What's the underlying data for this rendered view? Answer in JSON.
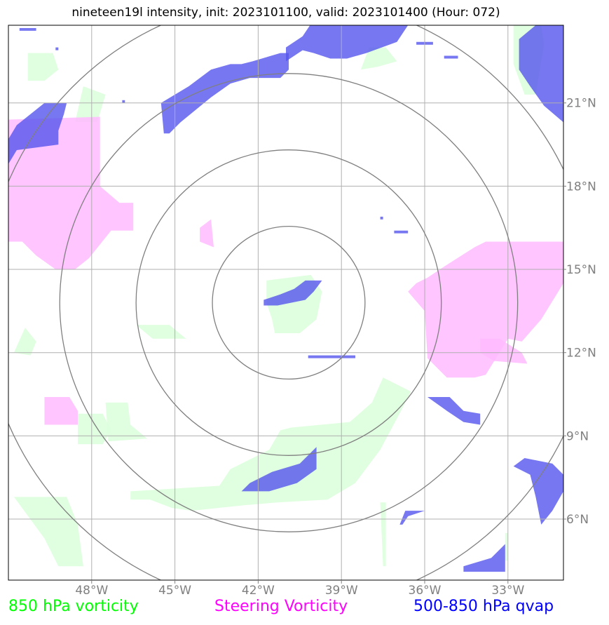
{
  "title": "nineteen19l intensity, init: 2023101100, valid: 2023101400 (Hour: 072)",
  "legend": [
    {
      "label": "850 hPa vorticity",
      "color": "#00ff00"
    },
    {
      "label": "Steering Vorticity",
      "color": "#ff00ff"
    },
    {
      "label": "500-850 hPa qvap",
      "color": "#0000ff"
    }
  ],
  "map": {
    "lon_range": [
      -51,
      -31
    ],
    "lat_range": [
      3.8,
      23.8
    ],
    "lon_ticks": [
      {
        "value": -48,
        "label": "48°W"
      },
      {
        "value": -45,
        "label": "45°W"
      },
      {
        "value": -42,
        "label": "42°W"
      },
      {
        "value": -39,
        "label": "39°W"
      },
      {
        "value": -36,
        "label": "36°W"
      },
      {
        "value": -33,
        "label": "33°W"
      }
    ],
    "lat_ticks": [
      {
        "value": 21,
        "label": "21°N"
      },
      {
        "value": 18,
        "label": "18°N"
      },
      {
        "value": 15,
        "label": "15°N"
      },
      {
        "value": 12,
        "label": "12°N"
      },
      {
        "value": 9,
        "label": "9°N"
      },
      {
        "value": 6,
        "label": "6°N"
      }
    ],
    "storm_center": {
      "lon": -40.9,
      "lat": 13.8
    },
    "range_rings_deg": [
      2.75,
      5.5,
      8.25,
      11.0
    ],
    "grid": true,
    "colors": {
      "vort850": "#ddffdd",
      "steering": "#ffbbff",
      "qvap": "#5555ee",
      "grid": "#b0b0b0",
      "rings": "#808080"
    }
  },
  "shapes": {
    "vort850": [
      [
        [
          -50.3,
          22.8
        ],
        [
          -49.4,
          22.8
        ],
        [
          -49.2,
          22.2
        ],
        [
          -49.7,
          21.8
        ],
        [
          -50.3,
          21.8
        ]
      ],
      [
        [
          -48.3,
          21.6
        ],
        [
          -47.5,
          21.3
        ],
        [
          -47.8,
          20.3
        ],
        [
          -48.6,
          20.3
        ]
      ],
      [
        [
          -50.4,
          12.9
        ],
        [
          -50.0,
          12.4
        ],
        [
          -50.2,
          11.9
        ],
        [
          -50.8,
          12.0
        ]
      ],
      [
        [
          -46.4,
          13.0
        ],
        [
          -45.2,
          13.0
        ],
        [
          -44.6,
          12.5
        ],
        [
          -45.8,
          12.5
        ]
      ],
      [
        [
          -48.5,
          9.8
        ],
        [
          -47.6,
          9.8
        ],
        [
          -47.3,
          9.2
        ],
        [
          -47.6,
          8.7
        ],
        [
          -48.5,
          8.7
        ]
      ],
      [
        [
          -47.5,
          10.2
        ],
        [
          -46.7,
          10.2
        ],
        [
          -46.6,
          9.4
        ],
        [
          -46.0,
          8.9
        ],
        [
          -47.4,
          8.8
        ]
      ],
      [
        [
          -50.8,
          6.8
        ],
        [
          -48.9,
          6.8
        ],
        [
          -48.5,
          5.8
        ],
        [
          -48.3,
          4.3
        ],
        [
          -49.2,
          4.3
        ],
        [
          -49.7,
          5.3
        ]
      ],
      [
        [
          -46.6,
          7.0
        ],
        [
          -43.4,
          7.2
        ],
        [
          -43.0,
          7.8
        ],
        [
          -41.6,
          8.5
        ],
        [
          -41.2,
          9.2
        ],
        [
          -40.8,
          9.3
        ],
        [
          -38.7,
          9.5
        ],
        [
          -37.9,
          10.2
        ],
        [
          -37.5,
          11.1
        ],
        [
          -36.5,
          10.6
        ],
        [
          -36.8,
          10.0
        ],
        [
          -37.6,
          8.5
        ],
        [
          -38.5,
          7.3
        ],
        [
          -39.5,
          6.7
        ],
        [
          -41.3,
          6.6
        ],
        [
          -42.5,
          6.5
        ],
        [
          -44.4,
          6.3
        ],
        [
          -45.1,
          6.4
        ],
        [
          -45.9,
          6.7
        ],
        [
          -46.6,
          6.7
        ]
      ],
      [
        [
          -41.7,
          14.6
        ],
        [
          -40.1,
          14.8
        ],
        [
          -39.7,
          14.2
        ],
        [
          -39.9,
          13.2
        ],
        [
          -40.5,
          12.7
        ],
        [
          -41.4,
          12.7
        ],
        [
          -41.5,
          13.2
        ],
        [
          -41.7,
          13.8
        ]
      ],
      [
        [
          -38.0,
          23.0
        ],
        [
          -37.4,
          23.0
        ],
        [
          -37.0,
          22.5
        ],
        [
          -37.7,
          22.3
        ],
        [
          -38.3,
          22.2
        ]
      ],
      [
        [
          -32.8,
          23.8
        ],
        [
          -31.8,
          23.8
        ],
        [
          -31.7,
          23.1
        ],
        [
          -32.0,
          21.3
        ],
        [
          -32.4,
          21.3
        ],
        [
          -32.8,
          22.4
        ]
      ],
      [
        [
          -37.6,
          6.6
        ],
        [
          -37.4,
          6.6
        ],
        [
          -37.4,
          4.3
        ],
        [
          -37.5,
          4.3
        ]
      ],
      [
        [
          -33.1,
          5.5
        ],
        [
          -33.0,
          5.5
        ],
        [
          -33.0,
          4.5
        ],
        [
          -33.1,
          4.5
        ]
      ]
    ],
    "steering": [
      [
        [
          -51.0,
          20.4
        ],
        [
          -47.7,
          20.5
        ],
        [
          -47.7,
          18.0
        ],
        [
          -47.0,
          17.4
        ],
        [
          -46.5,
          17.4
        ],
        [
          -46.5,
          16.4
        ],
        [
          -47.3,
          16.4
        ],
        [
          -48.1,
          15.4
        ],
        [
          -48.6,
          15.0
        ],
        [
          -49.3,
          15.0
        ],
        [
          -50.0,
          15.5
        ],
        [
          -50.5,
          16.0
        ],
        [
          -51.0,
          16.0
        ]
      ],
      [
        [
          -44.1,
          16.5
        ],
        [
          -43.7,
          16.8
        ],
        [
          -43.6,
          15.8
        ],
        [
          -44.1,
          16.0
        ]
      ],
      [
        [
          -49.7,
          10.4
        ],
        [
          -48.8,
          10.4
        ],
        [
          -48.5,
          9.9
        ],
        [
          -48.5,
          9.4
        ],
        [
          -49.7,
          9.4
        ]
      ],
      [
        [
          -35.3,
          15.1
        ],
        [
          -34.2,
          15.8
        ],
        [
          -33.8,
          16.0
        ],
        [
          -31.0,
          16.0
        ],
        [
          -31.0,
          14.5
        ],
        [
          -31.8,
          13.2
        ],
        [
          -32.5,
          12.4
        ],
        [
          -33.0,
          12.5
        ],
        [
          -33.8,
          11.2
        ],
        [
          -34.2,
          11.1
        ],
        [
          -35.2,
          11.1
        ],
        [
          -35.9,
          11.8
        ],
        [
          -36.0,
          13.5
        ],
        [
          -36.6,
          14.2
        ],
        [
          -36.3,
          14.5
        ],
        [
          -35.9,
          14.7
        ]
      ],
      [
        [
          -34.0,
          12.5
        ],
        [
          -33.3,
          12.5
        ],
        [
          -32.5,
          12.0
        ],
        [
          -32.3,
          11.6
        ],
        [
          -33.5,
          11.7
        ],
        [
          -34.0,
          12.0
        ]
      ]
    ],
    "qvap": [
      [
        [
          -50.6,
          23.7
        ],
        [
          -50.0,
          23.7
        ],
        [
          -50.0,
          23.6
        ],
        [
          -50.6,
          23.6
        ]
      ],
      [
        [
          -49.0,
          20.6
        ],
        [
          -48.9,
          21.0
        ],
        [
          -49.7,
          21.0
        ],
        [
          -50.7,
          20.2
        ],
        [
          -51.0,
          19.7
        ],
        [
          -51.0,
          18.8
        ],
        [
          -50.7,
          19.3
        ],
        [
          -49.2,
          19.5
        ],
        [
          -49.2,
          20.0
        ]
      ],
      [
        [
          -45.5,
          21.0
        ],
        [
          -44.5,
          21.6
        ],
        [
          -43.7,
          22.2
        ],
        [
          -43.0,
          22.4
        ],
        [
          -42.6,
          22.4
        ],
        [
          -42.2,
          22.5
        ],
        [
          -41.2,
          22.8
        ],
        [
          -40.9,
          22.8
        ],
        [
          -40.9,
          22.2
        ],
        [
          -41.2,
          21.9
        ],
        [
          -42.3,
          21.9
        ],
        [
          -43.0,
          21.7
        ],
        [
          -43.7,
          21.2
        ],
        [
          -44.8,
          20.3
        ],
        [
          -45.2,
          19.9
        ],
        [
          -45.4,
          19.9
        ]
      ],
      [
        [
          -40.0,
          24.0
        ],
        [
          -37.7,
          24.0
        ],
        [
          -36.6,
          23.8
        ],
        [
          -37.0,
          23.2
        ],
        [
          -38.1,
          22.8
        ],
        [
          -38.8,
          22.6
        ],
        [
          -39.4,
          22.6
        ],
        [
          -40.0,
          22.8
        ],
        [
          -40.4,
          22.9
        ],
        [
          -41.0,
          22.5
        ],
        [
          -41.0,
          23.0
        ],
        [
          -40.4,
          23.4
        ]
      ],
      [
        [
          -32.0,
          23.8
        ],
        [
          -31.0,
          23.8
        ],
        [
          -31.0,
          20.3
        ],
        [
          -31.7,
          20.9
        ],
        [
          -32.2,
          21.6
        ],
        [
          -32.6,
          22.2
        ],
        [
          -32.6,
          23.3
        ]
      ],
      [
        [
          -41.8,
          13.9
        ],
        [
          -41.2,
          14.1
        ],
        [
          -40.7,
          14.3
        ],
        [
          -40.3,
          14.6
        ],
        [
          -39.7,
          14.6
        ],
        [
          -40.0,
          14.2
        ],
        [
          -40.3,
          13.9
        ],
        [
          -41.3,
          13.7
        ],
        [
          -41.8,
          13.7
        ]
      ],
      [
        [
          -42.6,
          7.0
        ],
        [
          -41.6,
          7.0
        ],
        [
          -40.6,
          7.3
        ],
        [
          -39.9,
          7.8
        ],
        [
          -39.9,
          8.6
        ],
        [
          -40.5,
          8.0
        ],
        [
          -41.5,
          7.7
        ],
        [
          -42.3,
          7.3
        ]
      ],
      [
        [
          -36.9,
          5.8
        ],
        [
          -36.7,
          6.3
        ],
        [
          -36.0,
          6.3
        ],
        [
          -36.6,
          6.1
        ],
        [
          -36.8,
          5.8
        ]
      ],
      [
        [
          -35.9,
          10.4
        ],
        [
          -35.1,
          10.4
        ],
        [
          -34.6,
          9.9
        ],
        [
          -34.0,
          9.8
        ],
        [
          -34.0,
          9.4
        ],
        [
          -34.6,
          9.5
        ],
        [
          -35.2,
          9.9
        ]
      ],
      [
        [
          -32.4,
          8.2
        ],
        [
          -31.4,
          8.0
        ],
        [
          -31.0,
          7.6
        ],
        [
          -31.0,
          7.0
        ],
        [
          -31.4,
          6.3
        ],
        [
          -31.8,
          5.8
        ],
        [
          -32.0,
          6.8
        ],
        [
          -32.2,
          7.6
        ],
        [
          -32.8,
          7.9
        ]
      ],
      [
        [
          -34.6,
          4.1
        ],
        [
          -33.1,
          4.1
        ],
        [
          -33.1,
          5.1
        ],
        [
          -33.6,
          4.6
        ],
        [
          -34.6,
          4.3
        ]
      ],
      [
        [
          -36.3,
          23.2
        ],
        [
          -35.7,
          23.2
        ],
        [
          -35.7,
          23.1
        ],
        [
          -36.3,
          23.1
        ]
      ],
      [
        [
          -35.3,
          22.7
        ],
        [
          -34.8,
          22.7
        ],
        [
          -34.8,
          22.6
        ],
        [
          -35.3,
          22.6
        ]
      ],
      [
        [
          -37.1,
          16.4
        ],
        [
          -36.6,
          16.4
        ],
        [
          -36.6,
          16.3
        ],
        [
          -37.1,
          16.3
        ]
      ],
      [
        [
          -40.2,
          11.9
        ],
        [
          -38.5,
          11.9
        ],
        [
          -38.5,
          11.8
        ],
        [
          -40.2,
          11.8
        ]
      ],
      [
        [
          -37.6,
          16.9
        ],
        [
          -37.5,
          16.9
        ],
        [
          -37.5,
          16.8
        ],
        [
          -37.6,
          16.8
        ]
      ],
      [
        [
          -49.3,
          23.0
        ],
        [
          -49.2,
          23.0
        ],
        [
          -49.2,
          22.9
        ],
        [
          -49.3,
          22.9
        ]
      ],
      [
        [
          -46.9,
          21.1
        ],
        [
          -46.8,
          21.1
        ],
        [
          -46.8,
          21.0
        ],
        [
          -46.9,
          21.0
        ]
      ]
    ]
  }
}
